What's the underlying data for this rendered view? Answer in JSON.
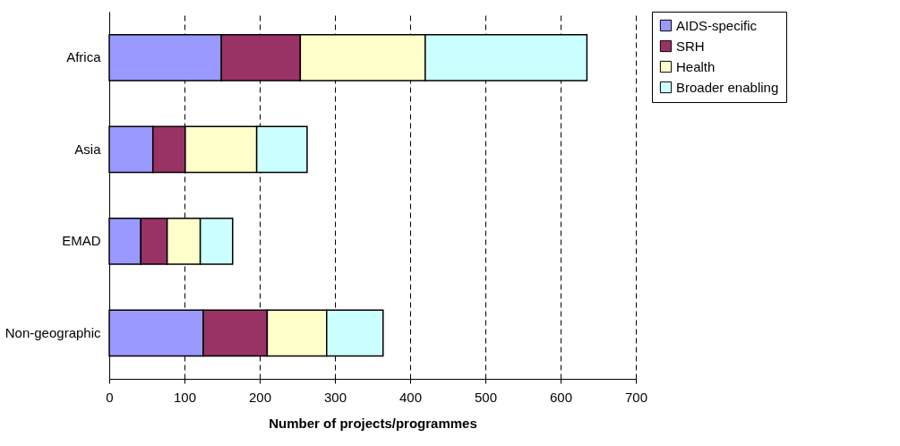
{
  "chart_data": {
    "type": "bar",
    "orientation": "horizontal",
    "stacked": true,
    "categories": [
      "Africa",
      "Asia",
      "EMAD",
      "Non-geographic"
    ],
    "series": [
      {
        "name": "AIDS-specific",
        "color": "#9999ff",
        "values": [
          149,
          58,
          42,
          125
        ]
      },
      {
        "name": "SRH",
        "color": "#993366",
        "values": [
          105,
          43,
          35,
          85
        ]
      },
      {
        "name": "Health",
        "color": "#ffffcc",
        "values": [
          166,
          95,
          44,
          79
        ]
      },
      {
        "name": "Broader enabling",
        "color": "#ccffff",
        "values": [
          215,
          67,
          43,
          75
        ]
      }
    ],
    "xlim": [
      0,
      700
    ],
    "xticks": [
      0,
      100,
      200,
      300,
      400,
      500,
      600,
      700
    ],
    "xlabel": "Number of projects/programmes",
    "grid": "x",
    "legend": "right"
  }
}
